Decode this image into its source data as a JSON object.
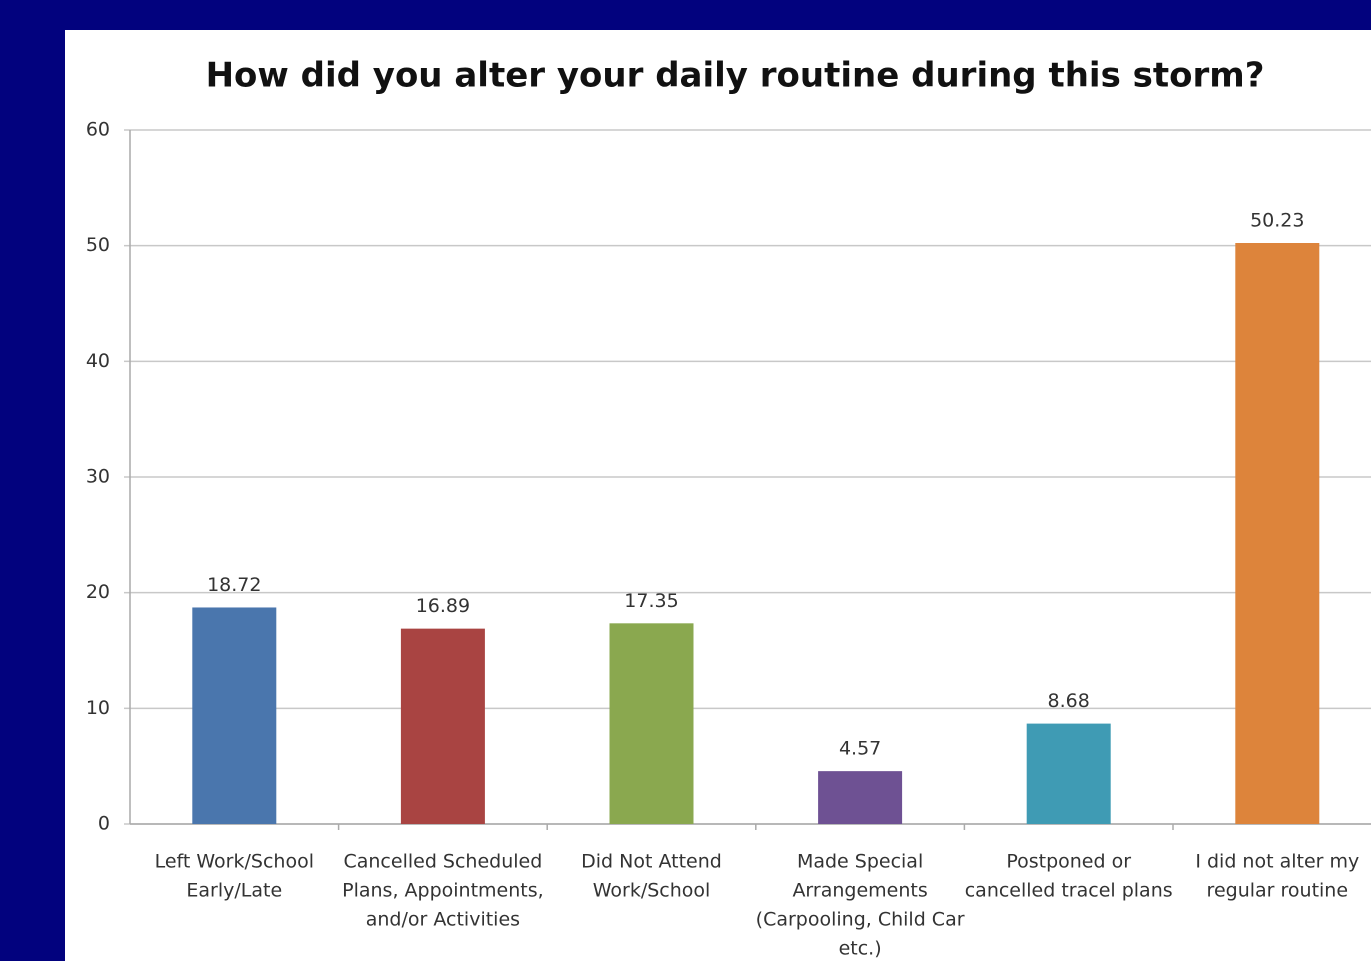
{
  "chart_data": {
    "type": "bar",
    "title": "How did you alter your daily routine during this storm?",
    "categories": [
      [
        "Left Work/School",
        "Early/Late"
      ],
      [
        "Cancelled Scheduled",
        "Plans, Appointments,",
        "and/or Activities"
      ],
      [
        "Did Not Attend",
        "Work/School"
      ],
      [
        "Made Special",
        "Arrangements",
        "(Carpooling, Child Car",
        "etc.)"
      ],
      [
        "Postponed or",
        "cancelled tracel plans"
      ],
      [
        "I did not alter my",
        "regular routine"
      ]
    ],
    "values": [
      18.72,
      16.89,
      17.35,
      4.57,
      8.68,
      50.23
    ],
    "colors": [
      "#4a76ad",
      "#a94442",
      "#8aa84f",
      "#6e5193",
      "#3f9bb4",
      "#dd843b"
    ],
    "ylim": [
      0,
      60
    ],
    "yticks": [
      0,
      10,
      20,
      30,
      40,
      50,
      60
    ],
    "grid": true
  }
}
